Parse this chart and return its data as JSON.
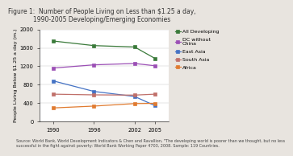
{
  "title": "Figure 1:  Number of People Living on Less than $1.25 a day,\n1990-2005 Developing/Emerging Economies",
  "ylabel": "People Living Below $1.25 a day (m.)",
  "x": [
    1990,
    1996,
    2002,
    2005
  ],
  "series": {
    "All Developing": {
      "values": [
        1750,
        1650,
        1620,
        1370
      ],
      "color": "#3a7a3a",
      "marker": "s",
      "linestyle": "-"
    },
    "DC without\nChina": {
      "values": [
        1160,
        1230,
        1260,
        1210
      ],
      "color": "#9b4fb5",
      "marker": "s",
      "linestyle": "-"
    },
    "East Asia": {
      "values": [
        880,
        650,
        540,
        340
      ],
      "color": "#4472c4",
      "marker": "s",
      "linestyle": "-"
    },
    "South Asia": {
      "values": [
        590,
        575,
        570,
        590
      ],
      "color": "#c0706a",
      "marker": "s",
      "linestyle": "-"
    },
    "Africa": {
      "values": [
        290,
        330,
        385,
        390
      ],
      "color": "#e07b30",
      "marker": "s",
      "linestyle": "-"
    }
  },
  "ylim": [
    0,
    2000
  ],
  "yticks": [
    0,
    400,
    800,
    1200,
    1600,
    2000
  ],
  "source_text": "Source: World Bank, World Development Indicators & Chen and Ravallion, \"The developing world is poorer than we thought, but no less\nsuccessful in the fight against poverty: World Bank Working Paper 4703, 2008. Sample: 119 Countries.",
  "plot_bg": "#ffffff",
  "fig_bg": "#e8e4df",
  "title_fontsize": 5.5,
  "label_fontsize": 4.5,
  "tick_fontsize": 4.8,
  "legend_fontsize": 4.5,
  "source_fontsize": 3.5
}
